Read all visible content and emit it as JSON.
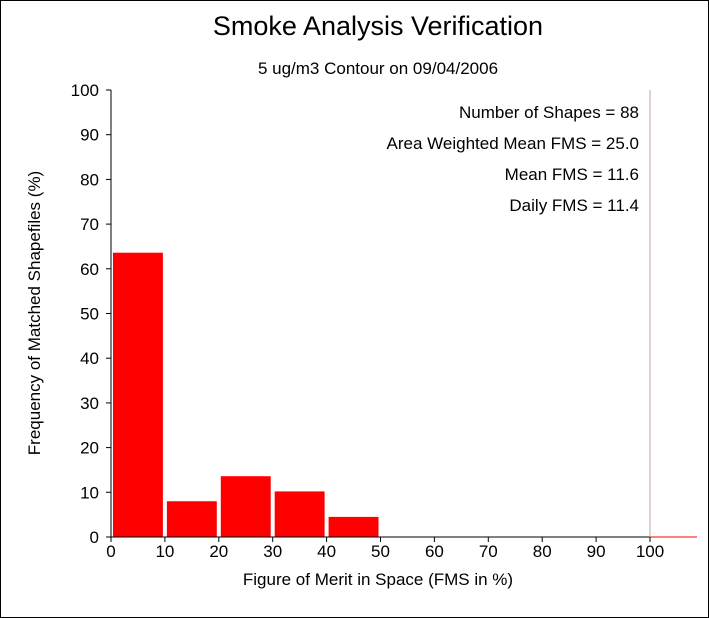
{
  "chart_data": {
    "type": "bar",
    "title": "Smoke Analysis Verification",
    "subtitle": "5 ug/m3 Contour on 09/04/2006",
    "xlabel": "Figure of Merit in Space (FMS in %)",
    "ylabel": "Frequency of Matched Shapefiles (%)",
    "xlim": [
      0,
      100
    ],
    "ylim": [
      0,
      100
    ],
    "xticks": [
      "0",
      "10",
      "20",
      "30",
      "40",
      "50",
      "60",
      "70",
      "80",
      "90",
      "100"
    ],
    "yticks": [
      "0",
      "10",
      "20",
      "30",
      "40",
      "50",
      "60",
      "70",
      "80",
      "90",
      "100"
    ],
    "bins": [
      {
        "start": 0,
        "end": 10,
        "value": 63.6
      },
      {
        "start": 10,
        "end": 20,
        "value": 8.0
      },
      {
        "start": 20,
        "end": 30,
        "value": 13.6
      },
      {
        "start": 30,
        "end": 40,
        "value": 10.2
      },
      {
        "start": 40,
        "end": 50,
        "value": 4.5
      },
      {
        "start": 50,
        "end": 60,
        "value": 0
      },
      {
        "start": 60,
        "end": 70,
        "value": 0
      },
      {
        "start": 70,
        "end": 80,
        "value": 0
      },
      {
        "start": 80,
        "end": 90,
        "value": 0
      },
      {
        "start": 90,
        "end": 100,
        "value": 0
      }
    ],
    "annotations": [
      "Number of Shapes = 88",
      "Area Weighted Mean FMS = 25.0",
      "Mean FMS = 11.6",
      "Daily FMS = 11.4"
    ],
    "grid": false,
    "colors": {
      "bar": "#ff0000",
      "axis": "#000000",
      "frame_right": "#c8a0a0"
    }
  }
}
